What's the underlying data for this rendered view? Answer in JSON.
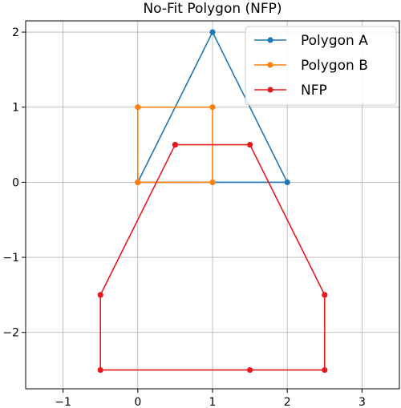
{
  "chart_data": {
    "type": "line",
    "title": "No-Fit Polygon (NFP)",
    "xlabel": "",
    "ylabel": "",
    "xlim": [
      -1.5,
      3.5
    ],
    "ylim": [
      -2.75,
      2.15
    ],
    "xticks": [
      -1,
      0,
      1,
      2,
      3
    ],
    "yticks": [
      -2,
      -1,
      0,
      1,
      2
    ],
    "xtick_labels": [
      "−1",
      "0",
      "1",
      "2",
      "3"
    ],
    "ytick_labels": [
      "−2",
      "−1",
      "0",
      "1",
      "2"
    ],
    "grid": true,
    "legend_position": "top-right",
    "series": [
      {
        "name": "Polygon A",
        "color": "#1f77b4",
        "points": [
          [
            0,
            0
          ],
          [
            2,
            0
          ],
          [
            1,
            2
          ],
          [
            0,
            0
          ]
        ]
      },
      {
        "name": "Polygon B",
        "color": "#ff7f0e",
        "points": [
          [
            0,
            0
          ],
          [
            1,
            0
          ],
          [
            1,
            1
          ],
          [
            0,
            1
          ],
          [
            0,
            0
          ]
        ]
      },
      {
        "name": "NFP",
        "color": "#e41a1c",
        "points": [
          [
            0.5,
            0.5
          ],
          [
            1.5,
            0.5
          ],
          [
            2.5,
            -1.5
          ],
          [
            2.5,
            -2.5
          ],
          [
            1.5,
            -2.5
          ],
          [
            -0.5,
            -2.5
          ],
          [
            -0.5,
            -1.5
          ],
          [
            0.5,
            0.5
          ]
        ]
      }
    ]
  }
}
